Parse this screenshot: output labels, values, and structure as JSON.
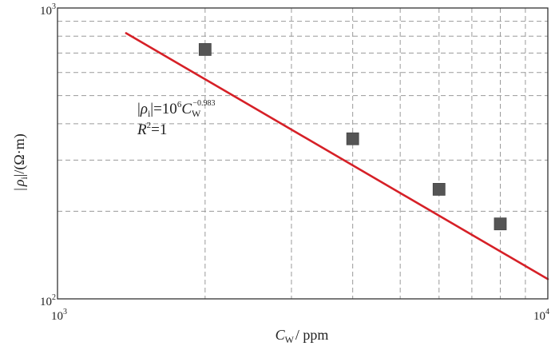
{
  "chart_data": {
    "type": "scatter",
    "x_scale": "log",
    "y_scale": "log",
    "xlim": [
      1000,
      10000
    ],
    "ylim": [
      100,
      1000
    ],
    "grid": true,
    "x_ticks": [
      {
        "value": 1000,
        "base": "10",
        "exp": "3"
      },
      {
        "value": 10000,
        "base": "10",
        "exp": "4"
      }
    ],
    "y_ticks": [
      {
        "value": 100,
        "base": "10",
        "exp": "2"
      },
      {
        "value": 1000,
        "base": "10",
        "exp": "3"
      }
    ],
    "xlabel": {
      "main": "C",
      "sub": "W",
      "rest": "/ ppm"
    },
    "ylabel": {
      "pre": "|",
      "rho": "ρ",
      "sub": "i",
      "post": "|/(Ω·m)"
    },
    "series": [
      {
        "kind": "markers",
        "marker": "square",
        "color": "#555555",
        "x": [
          2000,
          4000,
          6000,
          8000
        ],
        "y": [
          720,
          355,
          238,
          181
        ]
      },
      {
        "kind": "fit-line",
        "color": "#d62027",
        "coefficient": 1000000,
        "exponent": -0.983,
        "x_range": [
          1380,
          10000
        ]
      }
    ],
    "annotations": [
      {
        "equation": {
          "lhs_pre": "|",
          "lhs_rho": "ρ",
          "lhs_sub": "i",
          "lhs_post": "|=10",
          "pow6": "6",
          "C": "C",
          "C_sub": "W",
          "exp": "−0.983"
        },
        "r2": {
          "R": "R",
          "sup": "2",
          "rest": "=1"
        }
      }
    ]
  }
}
